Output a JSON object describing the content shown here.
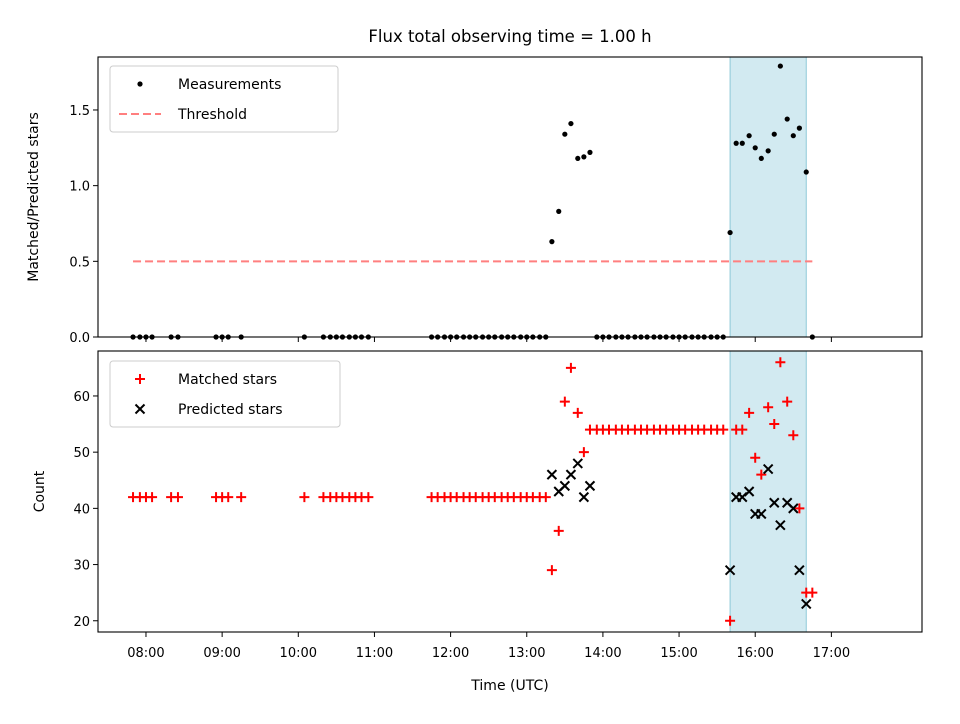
{
  "chart_data": {
    "type": "scatter",
    "title": "Flux total observing time = 1.00 h",
    "xlabel": "Time (UTC)",
    "x_ticks": [
      8,
      9,
      10,
      11,
      12,
      13,
      14,
      15,
      16,
      17
    ],
    "x_tick_labels": [
      "08:00",
      "09:00",
      "10:00",
      "11:00",
      "12:00",
      "13:00",
      "14:00",
      "15:00",
      "16:00",
      "17:00"
    ],
    "xlim": [
      7.37,
      18.19
    ],
    "highlight_span": [
      15.67,
      16.67
    ],
    "highlight_color": "#add8e6",
    "panels": [
      {
        "id": "ratio",
        "ylabel": "Matched/Predicted stars",
        "ylim": [
          0,
          1.85
        ],
        "y_ticks": [
          0.0,
          0.5,
          1.0,
          1.5
        ],
        "y_tick_labels": [
          "0.0",
          "0.5",
          "1.0",
          "1.5"
        ],
        "legend": [
          "Measurements",
          "Threshold"
        ],
        "threshold": {
          "value": 0.5,
          "x_range": [
            7.83,
            16.75
          ],
          "color": "#ff7f7f"
        },
        "series": [
          {
            "name": "Measurements",
            "marker": "dot",
            "color": "#000000",
            "points": [
              [
                7.83,
                0
              ],
              [
                7.92,
                0
              ],
              [
                8.0,
                0
              ],
              [
                8.08,
                0
              ],
              [
                8.33,
                0
              ],
              [
                8.42,
                0
              ],
              [
                8.92,
                0
              ],
              [
                9.0,
                0
              ],
              [
                9.08,
                0
              ],
              [
                9.25,
                0
              ],
              [
                10.08,
                0
              ],
              [
                10.33,
                0
              ],
              [
                10.42,
                0
              ],
              [
                10.5,
                0
              ],
              [
                10.58,
                0
              ],
              [
                10.67,
                0
              ],
              [
                10.75,
                0
              ],
              [
                10.83,
                0
              ],
              [
                10.92,
                0
              ],
              [
                11.75,
                0
              ],
              [
                11.83,
                0
              ],
              [
                11.92,
                0
              ],
              [
                12.0,
                0
              ],
              [
                12.08,
                0
              ],
              [
                12.17,
                0
              ],
              [
                12.25,
                0
              ],
              [
                12.33,
                0
              ],
              [
                12.42,
                0
              ],
              [
                12.5,
                0
              ],
              [
                12.58,
                0
              ],
              [
                12.67,
                0
              ],
              [
                12.75,
                0
              ],
              [
                12.83,
                0
              ],
              [
                12.92,
                0
              ],
              [
                13.0,
                0
              ],
              [
                13.08,
                0
              ],
              [
                13.17,
                0
              ],
              [
                13.25,
                0
              ],
              [
                13.33,
                0.63
              ],
              [
                13.42,
                0.83
              ],
              [
                13.5,
                1.34
              ],
              [
                13.58,
                1.41
              ],
              [
                13.67,
                1.18
              ],
              [
                13.75,
                1.19
              ],
              [
                13.83,
                1.22
              ],
              [
                13.92,
                0
              ],
              [
                14.0,
                0
              ],
              [
                14.08,
                0
              ],
              [
                14.17,
                0
              ],
              [
                14.25,
                0
              ],
              [
                14.33,
                0
              ],
              [
                14.42,
                0
              ],
              [
                14.5,
                0
              ],
              [
                14.58,
                0
              ],
              [
                14.67,
                0
              ],
              [
                14.75,
                0
              ],
              [
                14.83,
                0
              ],
              [
                14.92,
                0
              ],
              [
                15.0,
                0
              ],
              [
                15.08,
                0
              ],
              [
                15.17,
                0
              ],
              [
                15.25,
                0
              ],
              [
                15.33,
                0
              ],
              [
                15.42,
                0
              ],
              [
                15.5,
                0
              ],
              [
                15.58,
                0
              ],
              [
                15.67,
                0.69
              ],
              [
                15.75,
                1.28
              ],
              [
                15.83,
                1.28
              ],
              [
                15.92,
                1.33
              ],
              [
                16.0,
                1.25
              ],
              [
                16.08,
                1.18
              ],
              [
                16.17,
                1.23
              ],
              [
                16.25,
                1.34
              ],
              [
                16.33,
                1.79
              ],
              [
                16.42,
                1.44
              ],
              [
                16.5,
                1.33
              ],
              [
                16.58,
                1.38
              ],
              [
                16.67,
                1.09
              ],
              [
                16.75,
                0
              ]
            ]
          }
        ]
      },
      {
        "id": "count",
        "ylabel": "Count",
        "ylim": [
          18,
          68
        ],
        "y_ticks": [
          20,
          30,
          40,
          50,
          60
        ],
        "y_tick_labels": [
          "20",
          "30",
          "40",
          "50",
          "60"
        ],
        "legend": [
          "Matched stars",
          "Predicted stars"
        ],
        "series": [
          {
            "name": "Matched stars",
            "marker": "plus",
            "color": "#ff0000",
            "points": [
              [
                7.83,
                42
              ],
              [
                7.92,
                42
              ],
              [
                8.0,
                42
              ],
              [
                8.08,
                42
              ],
              [
                8.33,
                42
              ],
              [
                8.42,
                42
              ],
              [
                8.92,
                42
              ],
              [
                9.0,
                42
              ],
              [
                9.08,
                42
              ],
              [
                9.25,
                42
              ],
              [
                10.08,
                42
              ],
              [
                10.33,
                42
              ],
              [
                10.42,
                42
              ],
              [
                10.5,
                42
              ],
              [
                10.58,
                42
              ],
              [
                10.67,
                42
              ],
              [
                10.75,
                42
              ],
              [
                10.83,
                42
              ],
              [
                10.92,
                42
              ],
              [
                11.75,
                42
              ],
              [
                11.83,
                42
              ],
              [
                11.92,
                42
              ],
              [
                12.0,
                42
              ],
              [
                12.08,
                42
              ],
              [
                12.17,
                42
              ],
              [
                12.25,
                42
              ],
              [
                12.33,
                42
              ],
              [
                12.42,
                42
              ],
              [
                12.5,
                42
              ],
              [
                12.58,
                42
              ],
              [
                12.67,
                42
              ],
              [
                12.75,
                42
              ],
              [
                12.83,
                42
              ],
              [
                12.92,
                42
              ],
              [
                13.0,
                42
              ],
              [
                13.08,
                42
              ],
              [
                13.17,
                42
              ],
              [
                13.25,
                42
              ],
              [
                13.33,
                29
              ],
              [
                13.42,
                36
              ],
              [
                13.5,
                59
              ],
              [
                13.58,
                65
              ],
              [
                13.67,
                57
              ],
              [
                13.75,
                50
              ],
              [
                13.83,
                54
              ],
              [
                13.92,
                54
              ],
              [
                14.0,
                54
              ],
              [
                14.08,
                54
              ],
              [
                14.17,
                54
              ],
              [
                14.25,
                54
              ],
              [
                14.33,
                54
              ],
              [
                14.42,
                54
              ],
              [
                14.5,
                54
              ],
              [
                14.58,
                54
              ],
              [
                14.67,
                54
              ],
              [
                14.75,
                54
              ],
              [
                14.83,
                54
              ],
              [
                14.92,
                54
              ],
              [
                15.0,
                54
              ],
              [
                15.08,
                54
              ],
              [
                15.17,
                54
              ],
              [
                15.25,
                54
              ],
              [
                15.33,
                54
              ],
              [
                15.42,
                54
              ],
              [
                15.5,
                54
              ],
              [
                15.58,
                54
              ],
              [
                15.75,
                54
              ],
              [
                15.83,
                54
              ],
              [
                15.67,
                20
              ],
              [
                15.92,
                57
              ],
              [
                16.0,
                49
              ],
              [
                16.08,
                46
              ],
              [
                16.17,
                58
              ],
              [
                16.25,
                55
              ],
              [
                16.33,
                66
              ],
              [
                16.42,
                59
              ],
              [
                16.5,
                53
              ],
              [
                16.58,
                40
              ],
              [
                16.67,
                25
              ],
              [
                16.75,
                25
              ]
            ]
          },
          {
            "name": "Predicted stars",
            "marker": "x",
            "color": "#000000",
            "points": [
              [
                13.33,
                46
              ],
              [
                13.42,
                43
              ],
              [
                13.5,
                44
              ],
              [
                13.58,
                46
              ],
              [
                13.67,
                48
              ],
              [
                13.75,
                42
              ],
              [
                13.83,
                44
              ],
              [
                15.67,
                29
              ],
              [
                15.75,
                42
              ],
              [
                15.83,
                42
              ],
              [
                15.92,
                43
              ],
              [
                16.0,
                39
              ],
              [
                16.08,
                39
              ],
              [
                16.17,
                47
              ],
              [
                16.25,
                41
              ],
              [
                16.33,
                37
              ],
              [
                16.42,
                41
              ],
              [
                16.5,
                40
              ],
              [
                16.58,
                29
              ],
              [
                16.67,
                23
              ]
            ]
          }
        ]
      }
    ]
  }
}
